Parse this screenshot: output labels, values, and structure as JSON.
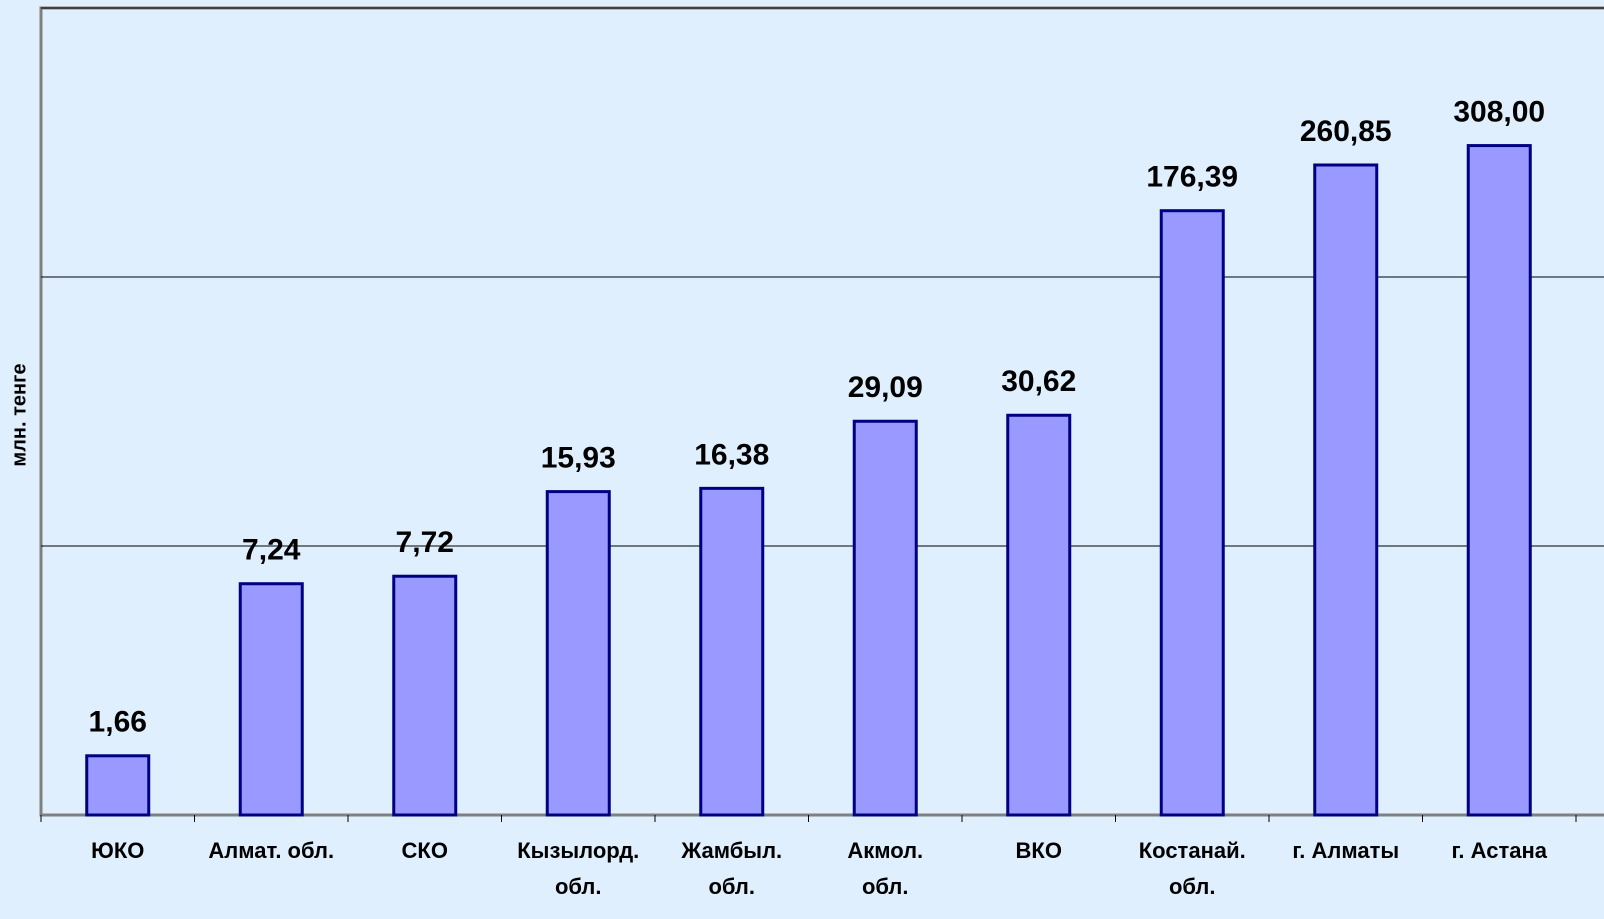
{
  "chart_data": {
    "type": "bar",
    "y_label": "млн. тенге",
    "categories": [
      "ЮКО",
      "Алмат. обл.",
      "СКО",
      "Кызылорд.\nобл.",
      "Жамбыл.\nобл.",
      "Акмол.\nобл.",
      "ВКО",
      "Костанай.\nобл.",
      "г. Алматы",
      "г. Астана"
    ],
    "values": [
      1.66,
      7.24,
      7.72,
      15.93,
      16.38,
      29.09,
      30.62,
      176.39,
      260.85,
      308.0
    ],
    "value_labels": [
      "1,66",
      "7,24",
      "7,72",
      "15,93",
      "16,38",
      "29,09",
      "30,62",
      "176,39",
      "260,85",
      "308,00"
    ],
    "color": "#9999ff",
    "edge_color": "#000080",
    "log_scale": true,
    "ylim": [
      1,
      1000
    ],
    "yticks": [
      1,
      10,
      100,
      1000
    ],
    "grid": true
  }
}
